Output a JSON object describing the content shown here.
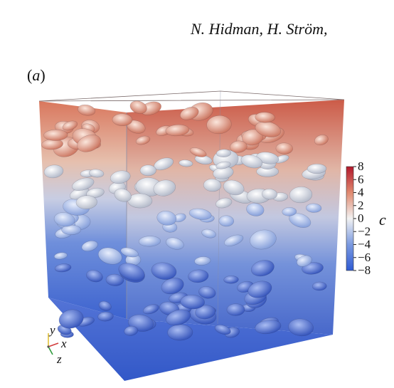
{
  "header": {
    "authors": "N. Hidman, H. Ström, "
  },
  "panel": {
    "label_open": "(",
    "label_letter": "a",
    "label_close": ")"
  },
  "colorbar": {
    "variable": "c",
    "ticks": [
      "8",
      "6",
      "4",
      "2",
      "0",
      "−2",
      "−4",
      "−6",
      "−8"
    ],
    "min": -8,
    "max": 8,
    "colors": {
      "max": "#b2182b",
      "mid": "#f2f2f2",
      "min": "#2f5bd3"
    }
  },
  "axes_triad": {
    "y": "y",
    "x": "x",
    "z": "z"
  }
}
